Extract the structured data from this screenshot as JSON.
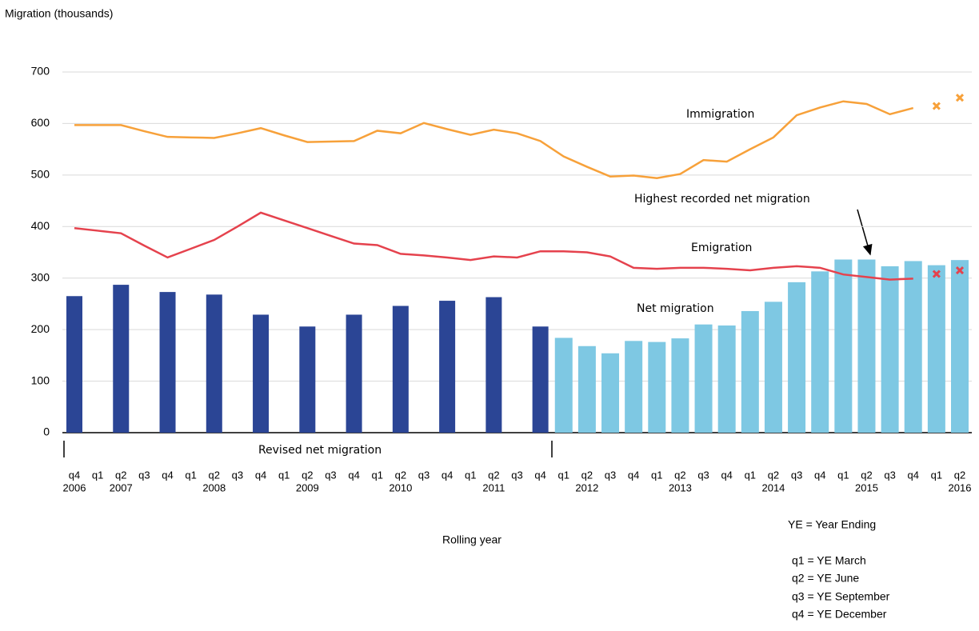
{
  "chart_data": {
    "type": "bar",
    "y_axis_label": "Migration (thousands)",
    "x_axis_label": "Rolling year",
    "categories": [
      "q4",
      "q1",
      "q2",
      "q3",
      "q4",
      "q1",
      "q2",
      "q3",
      "q4",
      "q1",
      "q2",
      "q3",
      "q4",
      "q1",
      "q2",
      "q3",
      "q4",
      "q1",
      "q2",
      "q3",
      "q4",
      "q1",
      "q2",
      "q3",
      "q4",
      "q1",
      "q2",
      "q3",
      "q4",
      "q1",
      "q2",
      "q3",
      "q4",
      "q1",
      "q2",
      "q3",
      "q4",
      "q1",
      "q2"
    ],
    "category_years": [
      "2006",
      null,
      "2007",
      null,
      null,
      null,
      "2008",
      null,
      null,
      null,
      "2009",
      null,
      null,
      null,
      "2010",
      null,
      null,
      null,
      "2011",
      null,
      null,
      null,
      "2012",
      null,
      null,
      null,
      "2013",
      null,
      null,
      null,
      "2014",
      null,
      null,
      null,
      "2015",
      null,
      null,
      null,
      "2016"
    ],
    "ylim": [
      0,
      700
    ],
    "yticks": [
      0,
      100,
      200,
      300,
      400,
      500,
      600,
      700
    ],
    "grid": true,
    "series": [
      {
        "name": "Revised net migration",
        "type": "bar",
        "color": "#2b4595",
        "values": [
          265,
          null,
          287,
          null,
          273,
          null,
          268,
          null,
          229,
          null,
          206,
          null,
          229,
          null,
          246,
          null,
          256,
          null,
          263,
          null,
          206,
          null,
          null,
          null,
          null,
          null,
          null,
          null,
          null,
          null,
          null,
          null,
          null,
          null,
          null,
          null,
          null,
          null,
          null
        ]
      },
      {
        "name": "Net migration",
        "type": "bar",
        "color": "#7ec8e3",
        "values": [
          null,
          null,
          null,
          null,
          null,
          null,
          null,
          null,
          null,
          null,
          null,
          null,
          null,
          null,
          null,
          null,
          null,
          null,
          null,
          null,
          null,
          184,
          168,
          154,
          178,
          176,
          183,
          210,
          208,
          236,
          254,
          292,
          313,
          336,
          336,
          323,
          333,
          325,
          335
        ]
      },
      {
        "name": "Immigration",
        "type": "line",
        "color": "#f7a13a",
        "values": [
          597,
          597,
          597,
          585,
          574,
          573,
          572,
          581,
          591,
          577,
          564,
          565,
          566,
          586,
          581,
          601,
          589,
          578,
          588,
          581,
          566,
          536,
          516,
          497,
          499,
          494,
          502,
          529,
          526,
          550,
          573,
          616,
          631,
          643,
          638,
          618,
          630,
          null,
          null
        ],
        "cross_values": [
          null,
          null,
          null,
          null,
          null,
          null,
          null,
          null,
          null,
          null,
          null,
          null,
          null,
          null,
          null,
          null,
          null,
          null,
          null,
          null,
          null,
          null,
          null,
          null,
          null,
          null,
          null,
          null,
          null,
          null,
          null,
          null,
          null,
          null,
          null,
          null,
          null,
          634,
          650
        ]
      },
      {
        "name": "Emigration",
        "type": "line",
        "color": "#e5424d",
        "values": [
          397,
          392,
          387,
          363,
          340,
          357,
          374,
          400,
          427,
          412,
          397,
          382,
          367,
          364,
          347,
          344,
          340,
          335,
          342,
          340,
          352,
          352,
          350,
          342,
          320,
          318,
          320,
          320,
          318,
          315,
          320,
          323,
          320,
          307,
          302,
          297,
          299,
          null,
          null
        ],
        "cross_values": [
          null,
          null,
          null,
          null,
          null,
          null,
          null,
          null,
          null,
          null,
          null,
          null,
          null,
          null,
          null,
          null,
          null,
          null,
          null,
          null,
          null,
          null,
          null,
          null,
          null,
          null,
          null,
          null,
          null,
          null,
          null,
          null,
          null,
          null,
          null,
          null,
          null,
          308,
          315
        ]
      }
    ],
    "annotation": "Highest recorded net migration",
    "notes": [
      "YE = Year Ending",
      "q1 = YE March",
      "q2 = YE June",
      "q3 = YE September",
      "q4 = YE December"
    ]
  }
}
